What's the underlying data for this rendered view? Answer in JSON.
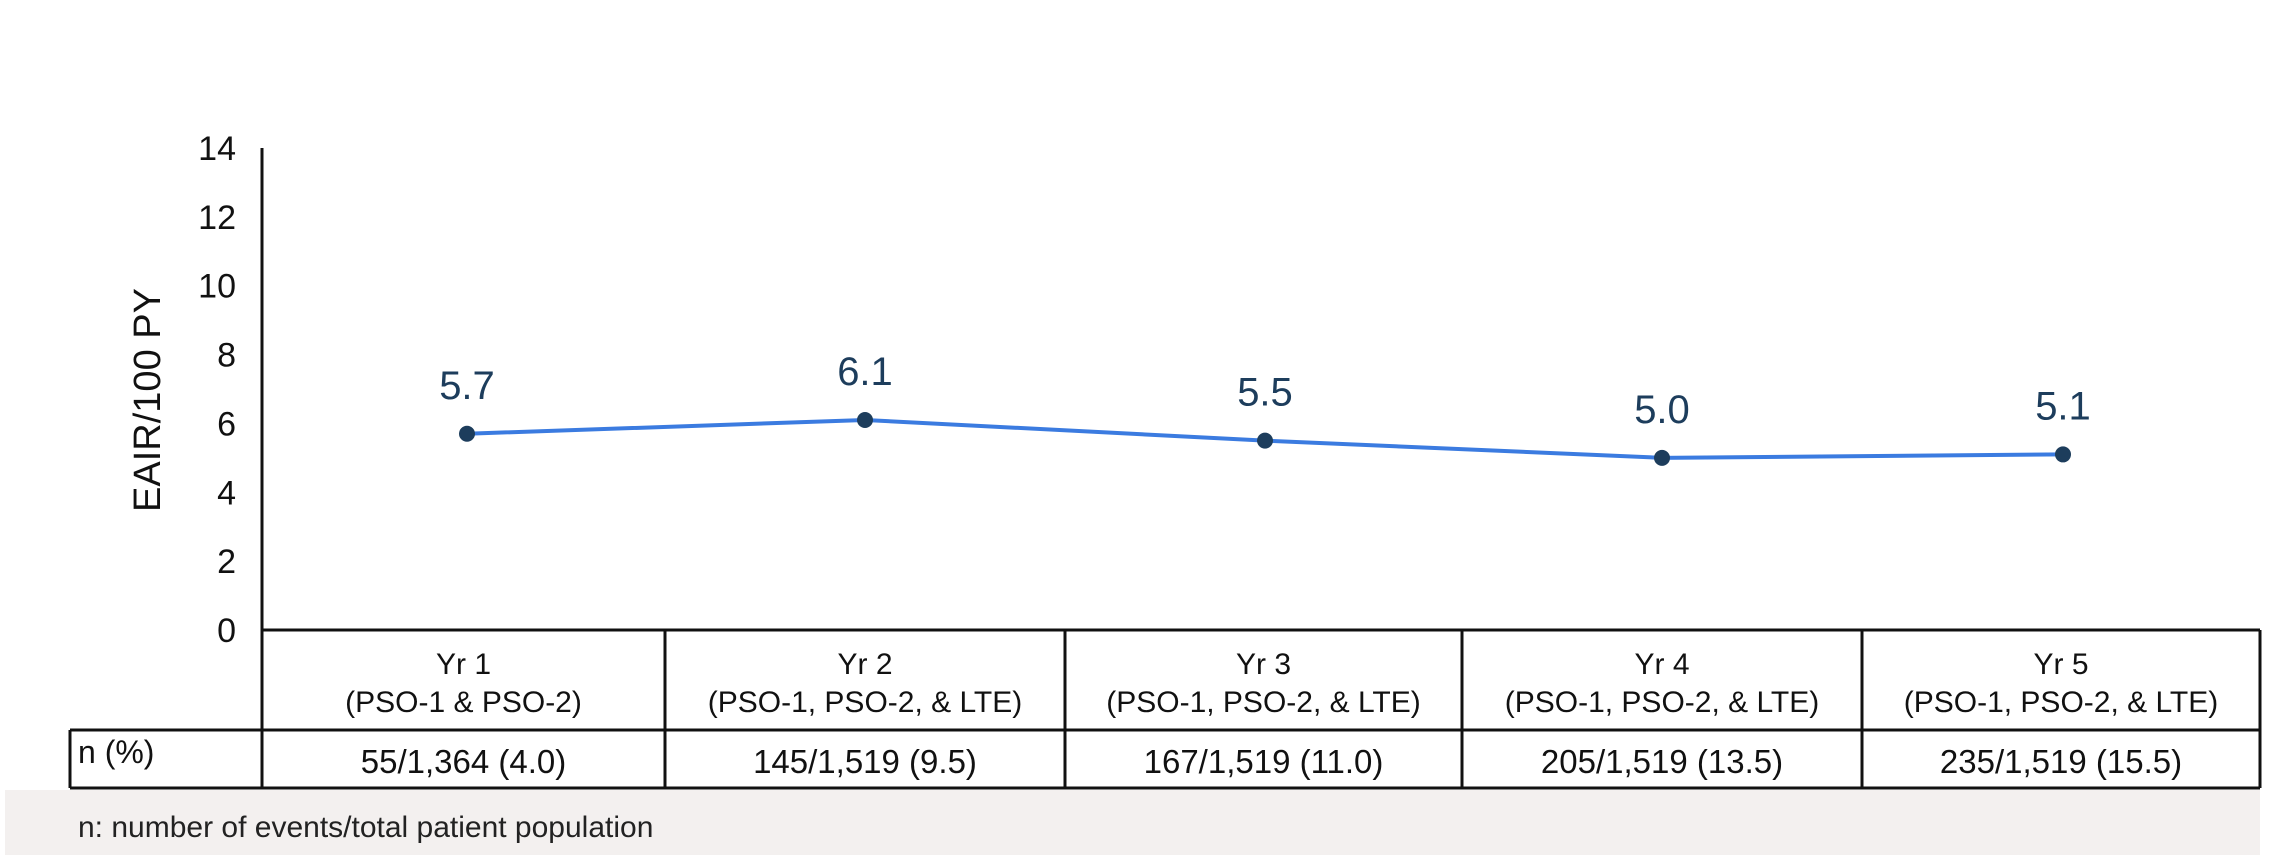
{
  "chart_data": {
    "type": "line",
    "ylabel": "EAIR/100 PY",
    "ylim": [
      0,
      14
    ],
    "yticks": [
      0,
      2,
      4,
      6,
      8,
      10,
      12,
      14
    ],
    "categories": [
      {
        "line1": "Yr 1",
        "line2": "(PSO-1 & PSO-2)"
      },
      {
        "line1": "Yr 2",
        "line2": "(PSO-1, PSO-2, & LTE)"
      },
      {
        "line1": "Yr 3",
        "line2": "(PSO-1, PSO-2, & LTE)"
      },
      {
        "line1": "Yr 4",
        "line2": "(PSO-1, PSO-2, & LTE)"
      },
      {
        "line1": "Yr 5",
        "line2": "(PSO-1, PSO-2, & LTE)"
      }
    ],
    "values": [
      5.7,
      6.1,
      5.5,
      5.0,
      5.1
    ],
    "value_labels": [
      "5.7",
      "6.1",
      "5.5",
      "5.0",
      "5.1"
    ],
    "table": {
      "row_label": "n (%)",
      "cells": [
        "55/1,364 (4.0)",
        "145/1,519 (9.5)",
        "167/1,519 (11.0)",
        "205/1,519 (13.5)",
        "235/1,519 (15.5)"
      ]
    },
    "footnote": "n: number of events/total patient population",
    "grid": false,
    "colors": {
      "line": "#3b7be0",
      "marker": "#1d3d5c",
      "label": "#1d3d5c",
      "footnote_bg": "#f3f0ef"
    }
  }
}
